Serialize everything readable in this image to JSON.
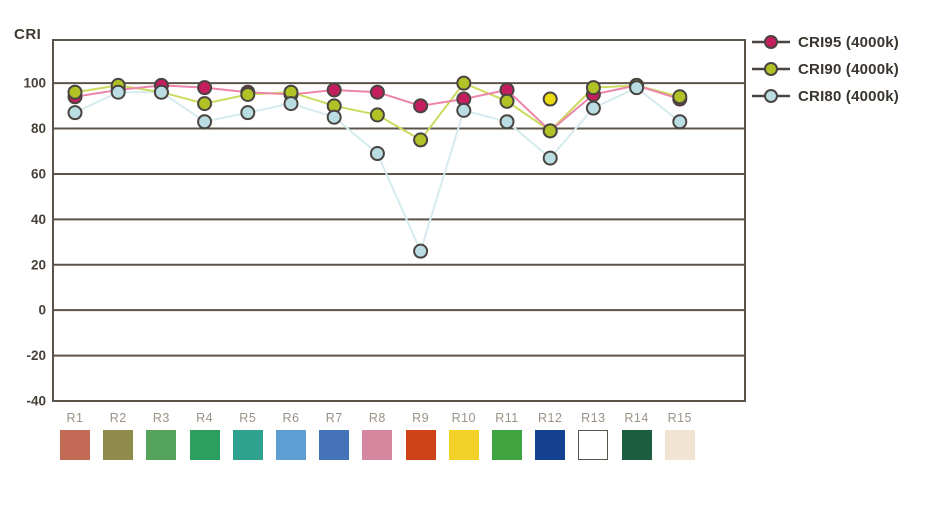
{
  "chart_data": {
    "type": "line",
    "y_axis_title": "CRI",
    "categories": [
      "R1",
      "R2",
      "R3",
      "R4",
      "R5",
      "R6",
      "R7",
      "R8",
      "R9",
      "R10",
      "R11",
      "R12",
      "R13",
      "R14",
      "R15"
    ],
    "series": [
      {
        "name": "CRI95 (4000k)",
        "marker_color": "#c41e5e",
        "line_color": "#ed85ab",
        "values": [
          94,
          97,
          99,
          98,
          96,
          95,
          97,
          96,
          90,
          93,
          97,
          79,
          95,
          99,
          93
        ]
      },
      {
        "name": "CRI90 (4000k)",
        "marker_color": "#b1c227",
        "line_color": "#ccda5e",
        "values": [
          96,
          99,
          96,
          91,
          95,
          96,
          90,
          86,
          75,
          100,
          92,
          79,
          98,
          99,
          94
        ]
      },
      {
        "name": "CRI80 (4000k)",
        "marker_color": "#b9dde2",
        "line_color": "#d5ebee",
        "values": [
          87,
          96,
          96,
          83,
          87,
          91,
          85,
          69,
          26,
          88,
          83,
          67,
          89,
          98,
          83
        ]
      }
    ],
    "extra_points": [
      {
        "category": "R12",
        "value": 93,
        "color": "#e9da12",
        "name": "yellow-dot"
      }
    ],
    "y_ticks": [
      100,
      80,
      60,
      40,
      20,
      0,
      -20,
      -40
    ],
    "ylim": [
      -40,
      119
    ],
    "grid": true,
    "legend_position": "top-right",
    "marker_outline_color": "#4a4440",
    "legend_line_color": "#4a4440",
    "axis_color": "#5c544a",
    "tick_label_color": "#47413a",
    "category_label_color": "#9b9287",
    "swatches": [
      {
        "label": "R1",
        "color": "#c36a57",
        "bordered": false
      },
      {
        "label": "R2",
        "color": "#8e8b4d",
        "bordered": false
      },
      {
        "label": "R3",
        "color": "#56a35c",
        "bordered": false
      },
      {
        "label": "R4",
        "color": "#2ba05e",
        "bordered": false
      },
      {
        "label": "R5",
        "color": "#2fa18f",
        "bordered": false
      },
      {
        "label": "R6",
        "color": "#5d9fd2",
        "bordered": false
      },
      {
        "label": "R7",
        "color": "#4473ba",
        "bordered": false
      },
      {
        "label": "R8",
        "color": "#d4879e",
        "bordered": false
      },
      {
        "label": "R9",
        "color": "#cf4319",
        "bordered": false
      },
      {
        "label": "R10",
        "color": "#f2d228",
        "bordered": false
      },
      {
        "label": "R11",
        "color": "#3fa33f",
        "bordered": false
      },
      {
        "label": "R12",
        "color": "#14418f",
        "bordered": false
      },
      {
        "label": "R13",
        "color": "#ffffff",
        "bordered": true
      },
      {
        "label": "R14",
        "color": "#1e5e40",
        "bordered": false
      },
      {
        "label": "R15",
        "color": "#f2e4d2",
        "bordered": false
      }
    ]
  }
}
